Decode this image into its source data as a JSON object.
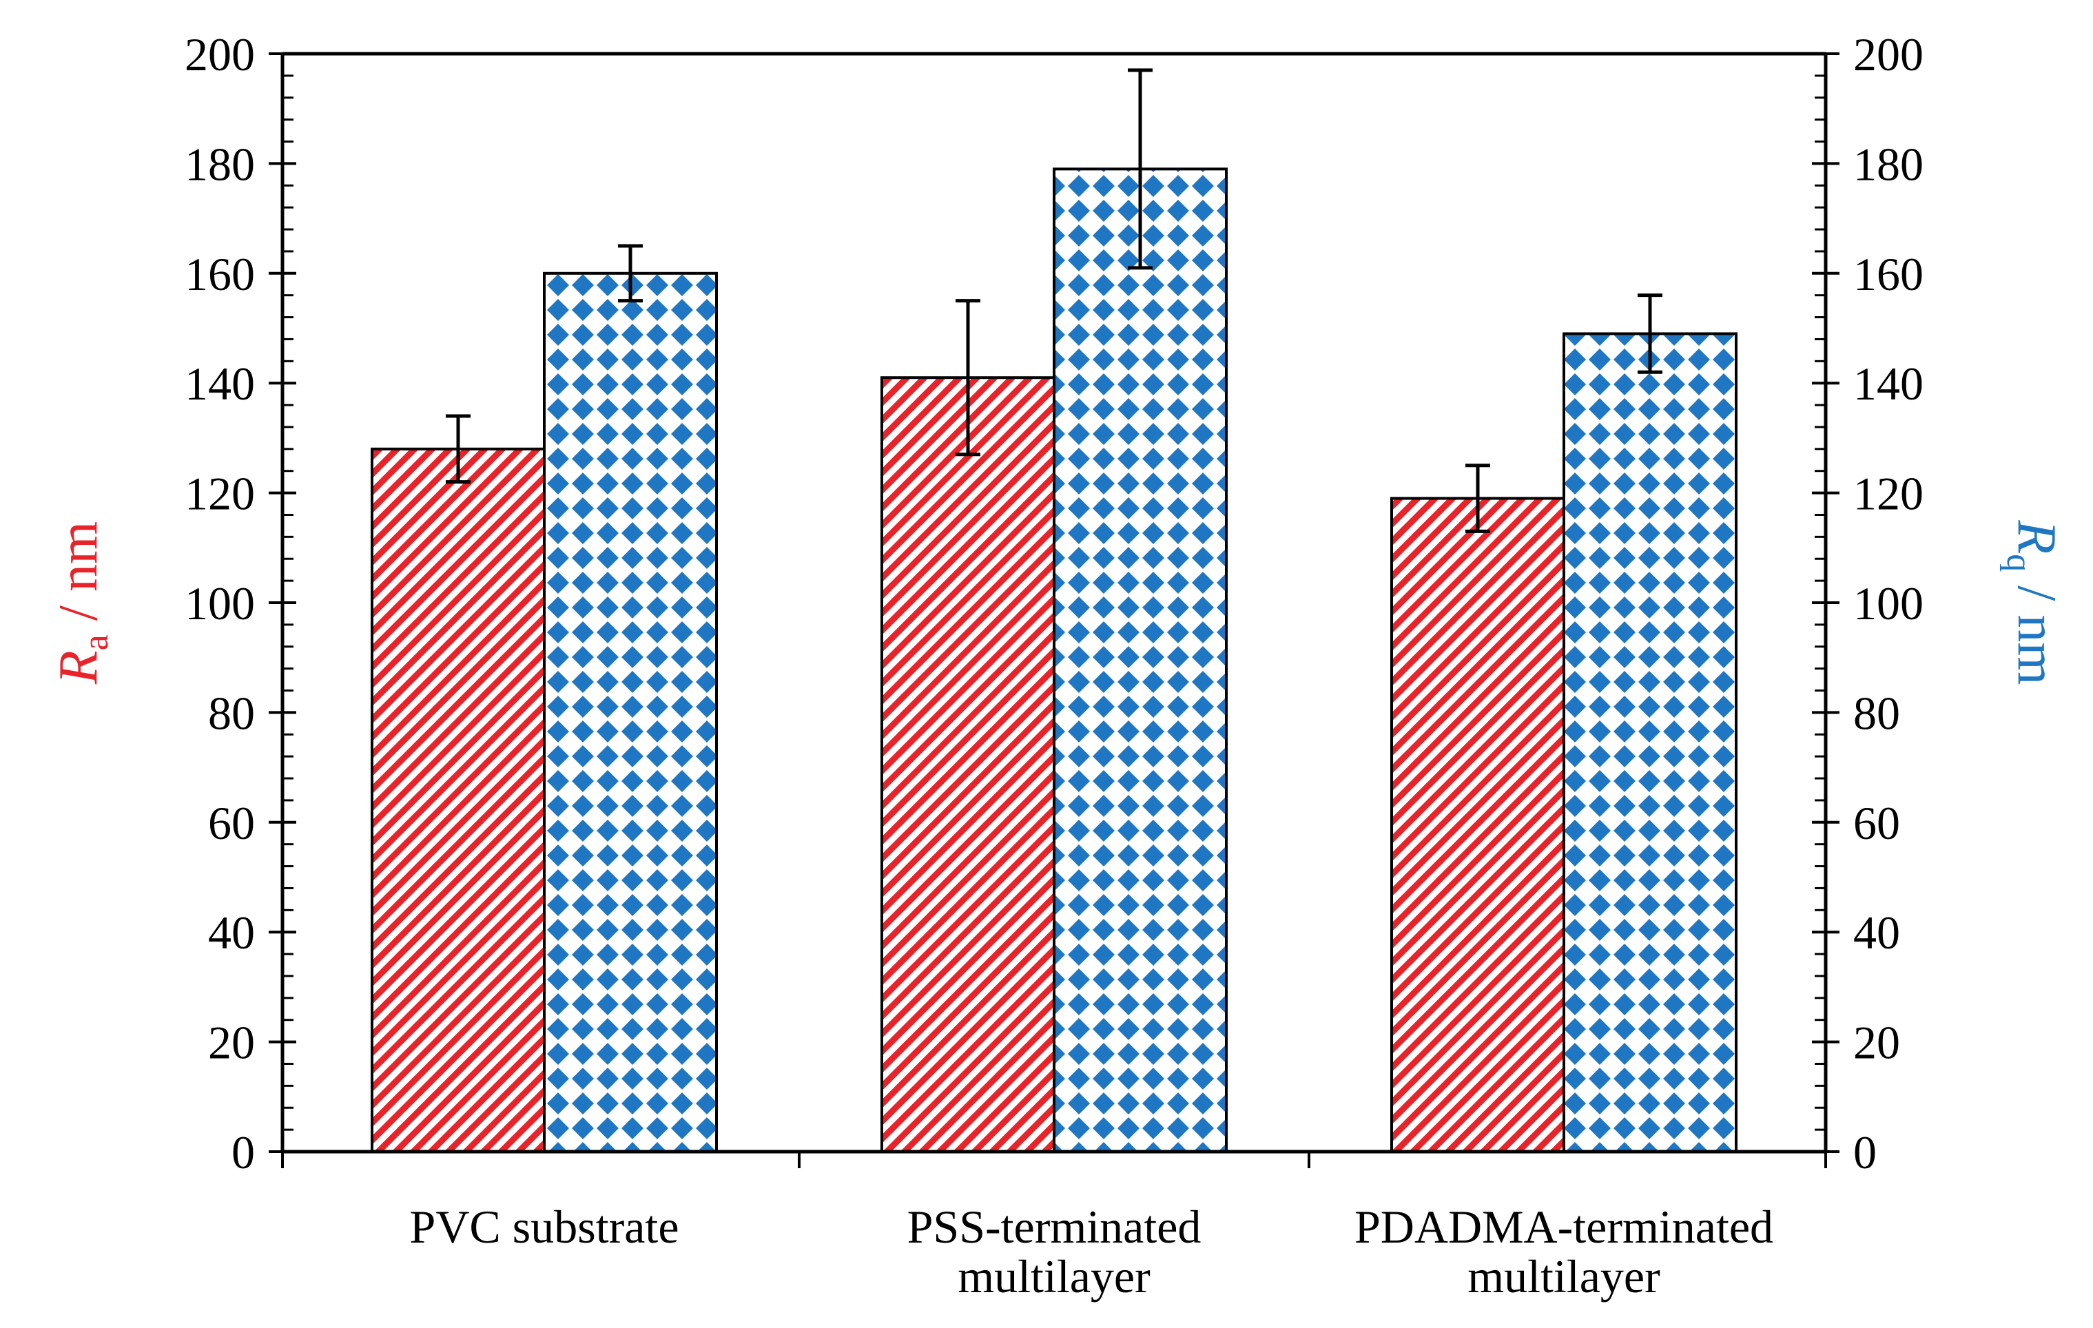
{
  "chart_data": {
    "type": "bar",
    "categories": [
      [
        "PVC substrate"
      ],
      [
        "PSS-terminated",
        "multilayer"
      ],
      [
        "PDADMA-terminated",
        "multilayer"
      ]
    ],
    "series": [
      {
        "name": "Ra",
        "axis": "left",
        "pattern": "diagonal-hatch",
        "color": "#e8232a",
        "values": [
          128,
          141,
          119
        ],
        "errors": [
          6,
          14,
          6
        ]
      },
      {
        "name": "Rq",
        "axis": "right",
        "pattern": "diamond-check",
        "color": "#1f77c4",
        "values": [
          160,
          179,
          149
        ],
        "errors": [
          5,
          18,
          7
        ]
      }
    ],
    "ylabel_left": {
      "symbol": "R",
      "subscript": "a",
      "unit": " / nm",
      "color": "#e8232a"
    },
    "ylabel_right": {
      "symbol": "R",
      "subscript": "q",
      "unit": " / nm",
      "color": "#1f77c4"
    },
    "ylim": [
      0,
      200
    ],
    "yticks": [
      0,
      20,
      40,
      60,
      80,
      100,
      120,
      140,
      160,
      180,
      200
    ],
    "grid": false,
    "title": ""
  }
}
